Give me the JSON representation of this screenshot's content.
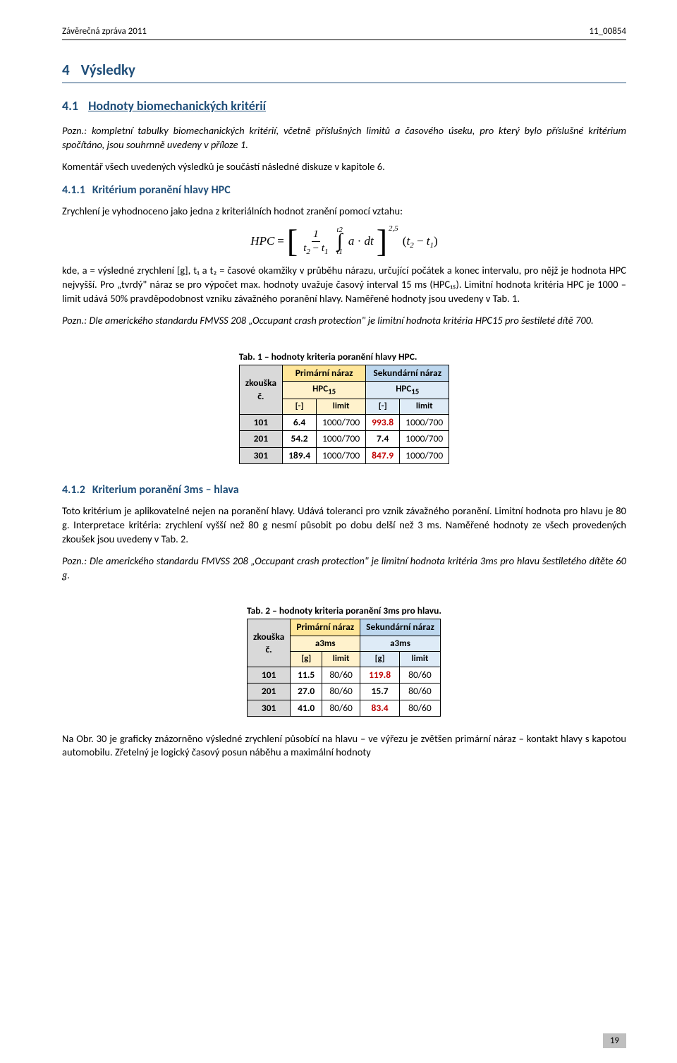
{
  "header": {
    "left": "Závěrečná zpráva 2011",
    "right": "11_00854"
  },
  "h1": {
    "num": "4",
    "text": "Výsledky"
  },
  "h2a": {
    "num": "4.1",
    "text": "Hodnoty biomechanických kritérií"
  },
  "p1": "Pozn.: kompletní tabulky biomechanických kritérií, včetně příslušných limitů a časového úseku, pro který bylo příslušné kritérium spočítáno, jsou souhrnně uvedeny v příloze 1.",
  "p2": "Komentář všech uvedených výsledků je součástí následné diskuze v kapitole 6.",
  "h3a": {
    "num": "4.1.1",
    "text": "Kritérium poranění hlavy HPC"
  },
  "p3": "Zrychlení je vyhodnoceno jako jedna z kriteriálních hodnot zranění pomocí vztahu:",
  "formula": {
    "lhs": "HPC",
    "eq": "=",
    "frac_top": "1",
    "frac_bot_a": "t",
    "frac_bot_as": "2",
    "frac_bot_b": "t",
    "frac_bot_bs": "1",
    "int_top": "t",
    "int_top_s": "2",
    "int_bot": "t",
    "int_bot_s": "1",
    "integrand_a": "a",
    "integrand_dot": "·",
    "integrand_dt": "dt",
    "exp": "2,5",
    "tail_open": "(",
    "tail_a": "t",
    "tail_as": "2",
    "tail_minus": "−",
    "tail_b": "t",
    "tail_bs": "1",
    "tail_close": ")"
  },
  "p4": "kde, a = výsledné zrychlení [g], t₁ a t₂ = časové okamžiky v průběhu nárazu, určující počátek a konec intervalu, pro nějž je hodnota HPC nejvyšší. Pro „tvrdý\" náraz se pro výpočet max. hodnoty uvažuje časový interval 15 ms (HPC₁₅). Limitní hodnota kritéria HPC je 1000 – limit udává 50% pravděpodobnost vzniku závažného poranění hlavy. Naměřené hodnoty jsou uvedeny v Tab. 1.",
  "p5": "Pozn.: Dle amerického standardu FMVSS 208 „Occupant crash protection\" je limitní hodnota kritéria HPC15 pro šestileté dítě 700.",
  "tab1": {
    "caption": "Tab. 1 – hodnoty kriteria poranění hlavy HPC.",
    "rowhdr1": "zkouška",
    "rowhdr2": "č.",
    "col_prim": "Primární náraz",
    "col_sec": "Sekundární náraz",
    "sub_label": "HPC",
    "sub_sub": "15",
    "unit_val": "[-]",
    "unit_lim": "limit",
    "rows": [
      {
        "id": "101",
        "pv": "6.4",
        "pl": "1000/700",
        "sv": "993.8",
        "sl": "1000/700",
        "p_ex": false,
        "s_ex": true
      },
      {
        "id": "201",
        "pv": "54.2",
        "pl": "1000/700",
        "sv": "7.4",
        "sl": "1000/700",
        "p_ex": false,
        "s_ex": false
      },
      {
        "id": "301",
        "pv": "189.4",
        "pl": "1000/700",
        "sv": "847.9",
        "sl": "1000/700",
        "p_ex": false,
        "s_ex": true
      }
    ]
  },
  "h3b": {
    "num": "4.1.2",
    "text": "Kriterium poranění 3ms – hlava"
  },
  "p6": "Toto kritérium je aplikovatelné nejen na poranění hlavy. Udává toleranci pro vznik závažného poranění. Limitní hodnota pro hlavu je 80 g. Interpretace kritéria: zrychlení vyšší než 80 g nesmí působit po dobu delší než 3 ms. Naměřené hodnoty ze všech provedených zkoušek jsou uvedeny v Tab. 2.",
  "p7": "Pozn.: Dle amerického standardu FMVSS 208 „Occupant crash protection\" je limitní hodnota kritéria 3ms pro hlavu šestiletého dítěte 60 g.",
  "tab2": {
    "caption": "Tab. 2 – hodnoty kriteria poranění 3ms pro hlavu.",
    "rowhdr1": "zkouška",
    "rowhdr2": "č.",
    "col_prim": "Primární náraz",
    "col_sec": "Sekundární náraz",
    "sub_label": "a3ms",
    "unit_val": "[g]",
    "unit_lim": "limit",
    "rows": [
      {
        "id": "101",
        "pv": "11.5",
        "pl": "80/60",
        "sv": "119.8",
        "sl": "80/60",
        "p_ex": false,
        "s_ex": true
      },
      {
        "id": "201",
        "pv": "27.0",
        "pl": "80/60",
        "sv": "15.7",
        "sl": "80/60",
        "p_ex": false,
        "s_ex": false
      },
      {
        "id": "301",
        "pv": "41.0",
        "pl": "80/60",
        "sv": "83.4",
        "sl": "80/60",
        "p_ex": false,
        "s_ex": true
      }
    ]
  },
  "p8": "Na Obr. 30 je graficky znázorněno výsledné zrychlení působící na hlavu – ve výřezu je zvětšen primární náraz – kontakt hlavy s kapotou automobilu. Zřetelný je logický časový posun náběhu a maximální hodnoty",
  "footer": {
    "page": "19"
  }
}
